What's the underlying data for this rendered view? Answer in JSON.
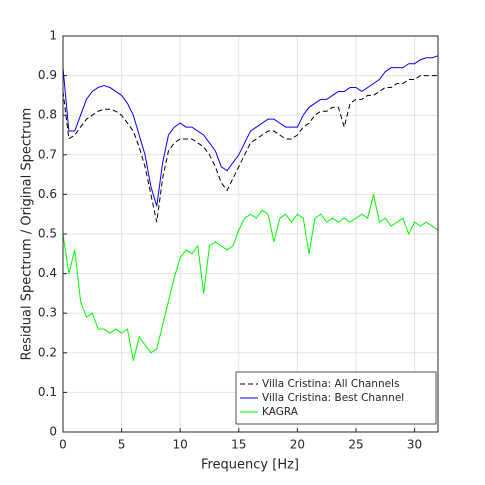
{
  "chart_data": {
    "type": "line",
    "xlabel": "Frequency [Hz]",
    "ylabel": "Residual Spectrum / Original Spectrum",
    "x": [
      0,
      0.5,
      1,
      1.5,
      2,
      2.5,
      3,
      3.5,
      4,
      4.5,
      5,
      5.5,
      6,
      6.5,
      7,
      7.5,
      8,
      8.5,
      9,
      9.5,
      10,
      10.5,
      11,
      11.5,
      12,
      12.5,
      13,
      13.5,
      14,
      14.5,
      15,
      15.5,
      16,
      16.5,
      17,
      17.5,
      18,
      18.5,
      19,
      19.5,
      20,
      20.5,
      21,
      21.5,
      22,
      22.5,
      23,
      23.5,
      24,
      24.5,
      25,
      25.5,
      26,
      26.5,
      27,
      27.5,
      28,
      28.5,
      29,
      29.5,
      30,
      30.5,
      31,
      31.5,
      32
    ],
    "series": [
      {
        "name": "Villa Cristina: All Channels",
        "color": "#000000",
        "linestyle": "dashed",
        "values": [
          0.86,
          0.74,
          0.75,
          0.77,
          0.79,
          0.8,
          0.81,
          0.815,
          0.815,
          0.81,
          0.8,
          0.78,
          0.76,
          0.72,
          0.67,
          0.6,
          0.53,
          0.64,
          0.71,
          0.73,
          0.74,
          0.74,
          0.74,
          0.73,
          0.72,
          0.7,
          0.67,
          0.63,
          0.61,
          0.64,
          0.67,
          0.7,
          0.73,
          0.74,
          0.75,
          0.76,
          0.76,
          0.75,
          0.74,
          0.74,
          0.75,
          0.77,
          0.78,
          0.8,
          0.81,
          0.81,
          0.82,
          0.82,
          0.77,
          0.83,
          0.84,
          0.84,
          0.85,
          0.85,
          0.86,
          0.87,
          0.87,
          0.88,
          0.88,
          0.89,
          0.89,
          0.9,
          0.9,
          0.9,
          0.9
        ]
      },
      {
        "name": "Villa Cristina: Best Channel",
        "color": "#0000ff",
        "linestyle": "solid",
        "values": [
          0.92,
          0.76,
          0.76,
          0.8,
          0.84,
          0.86,
          0.87,
          0.875,
          0.87,
          0.86,
          0.85,
          0.83,
          0.8,
          0.75,
          0.7,
          0.62,
          0.57,
          0.68,
          0.75,
          0.77,
          0.78,
          0.77,
          0.77,
          0.76,
          0.75,
          0.73,
          0.71,
          0.67,
          0.66,
          0.68,
          0.7,
          0.73,
          0.76,
          0.77,
          0.78,
          0.79,
          0.79,
          0.78,
          0.77,
          0.77,
          0.77,
          0.8,
          0.82,
          0.83,
          0.84,
          0.84,
          0.85,
          0.86,
          0.86,
          0.87,
          0.87,
          0.86,
          0.87,
          0.88,
          0.89,
          0.91,
          0.92,
          0.92,
          0.92,
          0.93,
          0.93,
          0.94,
          0.945,
          0.945,
          0.95
        ]
      },
      {
        "name": "KAGRA",
        "color": "#00ff00",
        "linestyle": "solid",
        "values": [
          0.5,
          0.4,
          0.46,
          0.33,
          0.29,
          0.3,
          0.26,
          0.26,
          0.25,
          0.26,
          0.25,
          0.26,
          0.18,
          0.24,
          0.22,
          0.2,
          0.21,
          0.27,
          0.33,
          0.39,
          0.44,
          0.46,
          0.45,
          0.47,
          0.35,
          0.47,
          0.48,
          0.47,
          0.46,
          0.47,
          0.51,
          0.54,
          0.55,
          0.54,
          0.56,
          0.55,
          0.48,
          0.54,
          0.55,
          0.53,
          0.55,
          0.54,
          0.45,
          0.54,
          0.55,
          0.53,
          0.54,
          0.53,
          0.54,
          0.53,
          0.54,
          0.55,
          0.54,
          0.6,
          0.53,
          0.54,
          0.52,
          0.53,
          0.54,
          0.5,
          0.53,
          0.52,
          0.53,
          0.52,
          0.51
        ]
      }
    ],
    "xlim": [
      0,
      32
    ],
    "xticks": [
      0,
      5,
      10,
      15,
      20,
      25,
      30
    ],
    "ylim": [
      0,
      1
    ],
    "yticks": [
      0,
      0.1,
      0.2,
      0.3,
      0.4,
      0.5,
      0.6,
      0.7,
      0.8,
      0.9,
      1
    ],
    "grid": true,
    "legend": "lower right"
  }
}
